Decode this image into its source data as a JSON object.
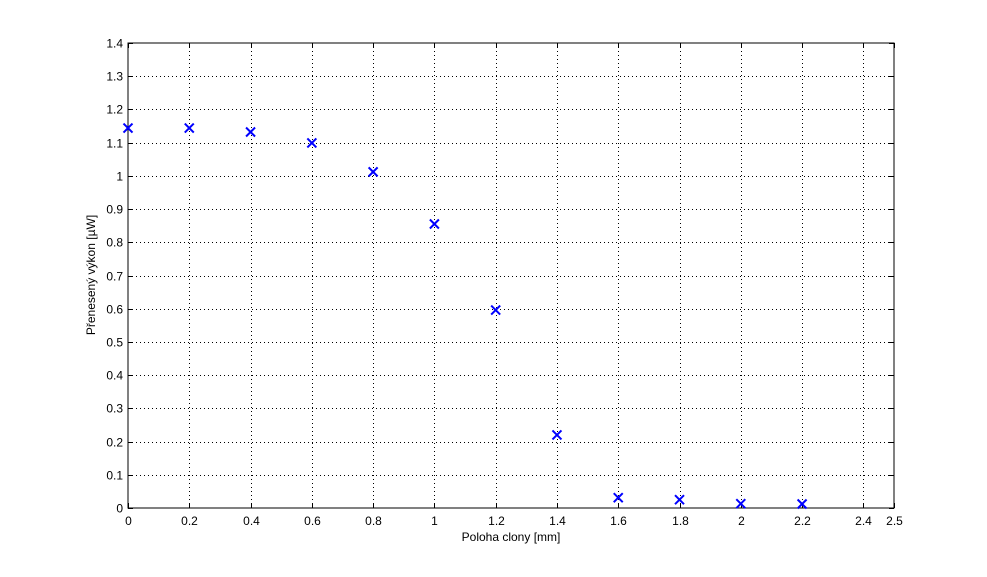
{
  "chart_data": {
    "type": "scatter",
    "title": "",
    "xlabel": "Poloha clony [mm]",
    "ylabel": "Přenesený výkon [µW]",
    "xlim": [
      0,
      2.5
    ],
    "ylim": [
      0,
      1.4
    ],
    "xticks": [
      0,
      0.2,
      0.4,
      0.6,
      0.8,
      1,
      1.2,
      1.4,
      1.6,
      1.8,
      2,
      2.2,
      2.4,
      2.5
    ],
    "xtick_labels": [
      "0",
      "0.2",
      "0.4",
      "0.6",
      "0.8",
      "1",
      "1.2",
      "1.4",
      "1.6",
      "1.8",
      "2",
      "2.2",
      "2.4",
      "2.5"
    ],
    "yticks": [
      0,
      0.1,
      0.2,
      0.3,
      0.4,
      0.5,
      0.6,
      0.7,
      0.8,
      0.9,
      1,
      1.1,
      1.2,
      1.3,
      1.4
    ],
    "ytick_labels": [
      "0",
      "0.1",
      "0.2",
      "0.3",
      "0.4",
      "0.5",
      "0.6",
      "0.7",
      "0.8",
      "0.9",
      "1",
      "1.1",
      "1.2",
      "1.3",
      "1.4"
    ],
    "grid": true,
    "marker": "x",
    "color": "#0000ff",
    "x": [
      0,
      0.2,
      0.4,
      0.6,
      0.8,
      1.0,
      1.2,
      1.4,
      1.6,
      1.8,
      2.0,
      2.2
    ],
    "y": [
      1.144,
      1.144,
      1.132,
      1.099,
      1.012,
      0.855,
      0.596,
      0.22,
      0.031,
      0.025,
      0.013,
      0.012
    ]
  }
}
